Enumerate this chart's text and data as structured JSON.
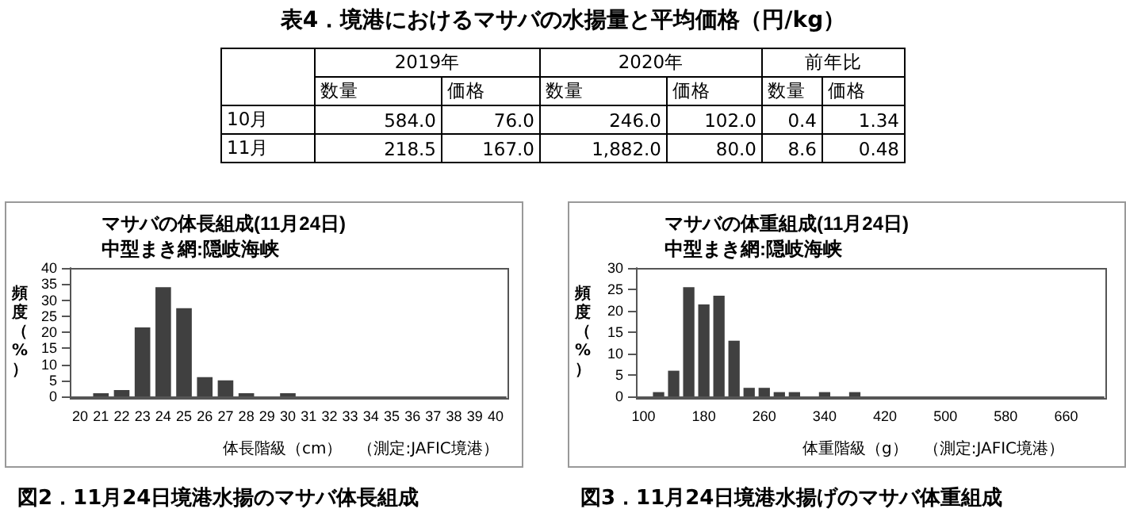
{
  "chart_data": [
    {
      "type": "other",
      "title": "表4．境港におけるマサバの水揚量と平均価格（円/kg）",
      "annotations": [
        "2019年",
        "2020年",
        "前年比",
        "数量",
        "価格",
        "数量",
        "価格",
        "数量",
        "価格",
        "10月",
        "584.0",
        "76.0",
        "246.0",
        "102.0",
        "0.4",
        "1.34",
        "11月",
        "218.5",
        "167.0",
        "1,882.0",
        "80.0",
        "8.6",
        "0.48"
      ]
    },
    {
      "type": "bar",
      "title": "マサバの体長組成(11月24日)",
      "subtitle": "中型まき網:隠岐海峡",
      "xlabel": "体長階級（cm）",
      "ylabel": "頻度（%）",
      "annotations": [
        "（測定:JAFIC境港）",
        "図2．11月24日境港水揚のマサバ体長組成"
      ],
      "categories": [
        "20",
        "21",
        "22",
        "23",
        "24",
        "25",
        "26",
        "27",
        "28",
        "29",
        "30",
        "31",
        "32",
        "33",
        "34",
        "35",
        "36",
        "37",
        "38",
        "39",
        "40"
      ],
      "values": [
        0,
        1,
        2,
        21.5,
        34,
        27.5,
        6,
        5,
        1,
        0,
        1,
        0,
        0,
        0,
        0,
        0,
        0,
        0,
        0,
        0,
        0
      ],
      "color": "#404040",
      "ylim": [
        0,
        40
      ],
      "yticks": [
        0,
        5,
        10,
        15,
        20,
        25,
        30,
        35,
        40
      ]
    },
    {
      "type": "bar",
      "title": "マサバの体重組成(11月24日)",
      "subtitle": "中型まき網:隠岐海峡",
      "xlabel": "体重階級（g）",
      "ylabel": "頻度（%）",
      "annotations": [
        "（測定:JAFIC境港）",
        "図3．11月24日境港水揚げのマサバ体重組成"
      ],
      "categories": [
        "100",
        null,
        null,
        null,
        "180",
        null,
        null,
        null,
        "260",
        null,
        null,
        null,
        "340",
        null,
        null,
        null,
        "420",
        null,
        null,
        null,
        "500",
        null,
        null,
        null,
        "580",
        null,
        null,
        null,
        "660",
        null,
        null
      ],
      "values": [
        0,
        1,
        6,
        25.5,
        21.5,
        23.5,
        13,
        2,
        2,
        1,
        1,
        0,
        1,
        0,
        1,
        0,
        0,
        0,
        0,
        0,
        0,
        0,
        0,
        0,
        0,
        0,
        0,
        0,
        0,
        0,
        0
      ],
      "color": "#404040",
      "ylim": [
        0,
        30
      ],
      "yticks": [
        0,
        5,
        10,
        15,
        20,
        25,
        30
      ]
    }
  ]
}
